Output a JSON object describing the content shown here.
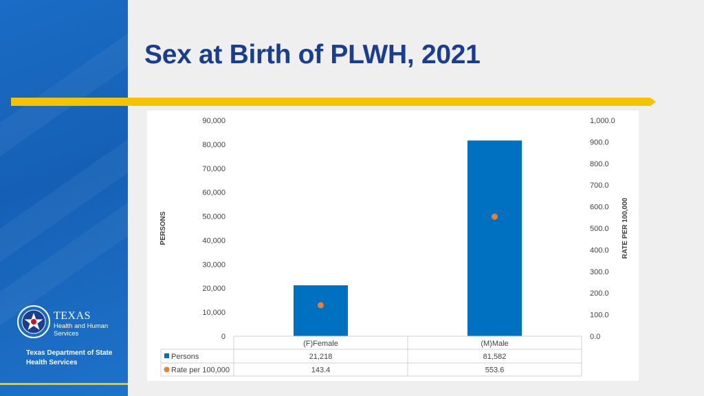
{
  "slide": {
    "title": "Sex at Birth of PLWH, 2021"
  },
  "branding": {
    "logo_word": "TEXAS",
    "logo_sub": "Health and Human Services",
    "department": "Texas Department of State Health Services"
  },
  "colors": {
    "sidebar": "#1565b8",
    "accent_rule": "#f5c400",
    "title": "#1a3e8f",
    "bar": "#0070c0",
    "dot": "#ed7d31"
  },
  "chart_data": {
    "type": "bar",
    "categories": [
      "(F)Female",
      "(M)Male"
    ],
    "series": [
      {
        "name": "Persons",
        "kind": "bar",
        "axis": "left",
        "values": [
          21218,
          81582
        ],
        "labels": [
          "21,218",
          "81,582"
        ]
      },
      {
        "name": "Rate per 100,000",
        "kind": "scatter",
        "axis": "right",
        "values": [
          143.4,
          553.6
        ],
        "labels": [
          "143.4",
          "553.6"
        ]
      }
    ],
    "ylabel_left": "PERSONS",
    "ylabel_right": "RATE PER 100,000",
    "ylim_left": [
      0,
      90000
    ],
    "ylim_right": [
      0,
      1000
    ],
    "yticks_left": [
      "0",
      "10,000",
      "20,000",
      "30,000",
      "40,000",
      "50,000",
      "60,000",
      "70,000",
      "80,000",
      "90,000"
    ],
    "yticks_right": [
      "0.0",
      "100.0",
      "200.0",
      "300.0",
      "400.0",
      "500.0",
      "600.0",
      "700.0",
      "800.0",
      "900.0",
      "1,000.0"
    ],
    "data_table": true,
    "grid": false
  }
}
